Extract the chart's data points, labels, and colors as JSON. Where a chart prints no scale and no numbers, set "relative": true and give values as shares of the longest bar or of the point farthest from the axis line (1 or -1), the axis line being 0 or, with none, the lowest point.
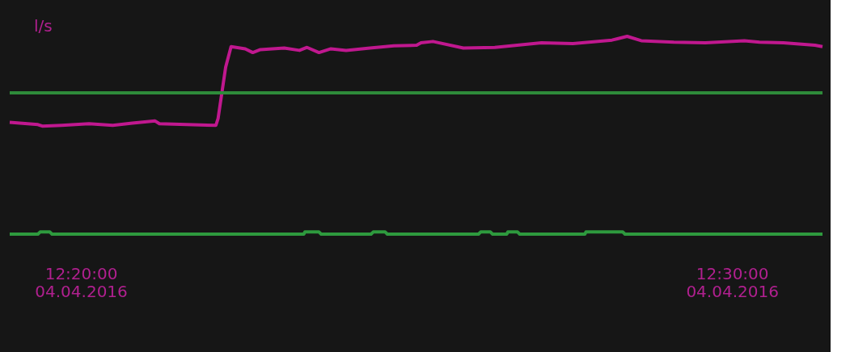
{
  "chart_data": {
    "type": "line",
    "relative": true,
    "ylabel": "l/s",
    "x": [
      "2016-04-04T12:18:54",
      "2016-04-04T12:19:20",
      "2016-04-04T12:19:24",
      "2016-04-04T12:19:42",
      "2016-04-04T12:20:07",
      "2016-04-04T12:20:29",
      "2016-04-04T12:20:47",
      "2016-04-04T12:21:08",
      "2016-04-04T12:21:12",
      "2016-04-04T12:22:04",
      "2016-04-04T12:22:06",
      "2016-04-04T12:22:13",
      "2016-04-04T12:22:18",
      "2016-04-04T12:22:31",
      "2016-04-04T12:22:38",
      "2016-04-04T12:22:45",
      "2016-04-04T12:23:07",
      "2016-04-04T12:23:21",
      "2016-04-04T12:23:28",
      "2016-04-04T12:23:39",
      "2016-04-04T12:23:50",
      "2016-04-04T12:24:04",
      "2016-04-04T12:24:26",
      "2016-04-04T12:24:48",
      "2016-04-04T12:25:09",
      "2016-04-04T12:25:13",
      "2016-04-04T12:25:24",
      "2016-04-04T12:25:52",
      "2016-04-04T12:26:21",
      "2016-04-04T12:27:04",
      "2016-04-04T12:27:33",
      "2016-04-04T12:28:09",
      "2016-04-04T12:28:23",
      "2016-04-04T12:28:36",
      "2016-04-04T12:29:06",
      "2016-04-04T12:29:35",
      "2016-04-04T12:30:11",
      "2016-04-04T12:30:25",
      "2016-04-04T12:30:47",
      "2016-04-04T12:31:16",
      "2016-04-04T12:31:23"
    ],
    "series": [
      {
        "color": "#c0188f",
        "values": [
          0.565,
          0.554,
          0.546,
          0.55,
          0.558,
          0.55,
          0.561,
          0.572,
          0.558,
          0.55,
          0.584,
          0.844,
          0.948,
          0.937,
          0.918,
          0.933,
          0.941,
          0.929,
          0.944,
          0.918,
          0.937,
          0.929,
          0.941,
          0.952,
          0.955,
          0.967,
          0.974,
          0.941,
          0.944,
          0.967,
          0.963,
          0.981,
          1.0,
          0.978,
          0.97,
          0.967,
          0.978,
          0.97,
          0.967,
          0.955,
          0.948
        ]
      },
      {
        "color": "#2e9a3e",
        "x": [
          "2016-04-04T12:18:54",
          "2016-04-04T12:19:20",
          "2016-04-04T12:19:22",
          "2016-04-04T12:19:31",
          "2016-04-04T12:19:33",
          "2016-04-04T12:23:25",
          "2016-04-04T12:23:26",
          "2016-04-04T12:23:39",
          "2016-04-04T12:23:41",
          "2016-04-04T12:24:27",
          "2016-04-04T12:24:29",
          "2016-04-04T12:24:40",
          "2016-04-04T12:24:42",
          "2016-04-04T12:26:06",
          "2016-04-04T12:26:08",
          "2016-04-04T12:26:17",
          "2016-04-04T12:26:19",
          "2016-04-04T12:26:32",
          "2016-04-04T12:26:33",
          "2016-04-04T12:26:42",
          "2016-04-04T12:26:44",
          "2016-04-04T12:27:44",
          "2016-04-04T12:27:45",
          "2016-04-04T12:28:19",
          "2016-04-04T12:28:21",
          "2016-04-04T12:31:23"
        ],
        "values": [
          0,
          0,
          0.011,
          0.011,
          0,
          0,
          0.011,
          0.011,
          0,
          0,
          0.011,
          0.011,
          0,
          0,
          0.011,
          0.011,
          0,
          0,
          0.011,
          0.011,
          0,
          0,
          0.011,
          0.011,
          0,
          0
        ]
      }
    ],
    "ref_lines": [
      {
        "axis": "y",
        "value": 0.714,
        "color": "#2e8b3a"
      }
    ],
    "xlim": [
      "2016-04-04T12:18:54",
      "2016-04-04T12:31:23"
    ],
    "xticks": [
      {
        "value": "2016-04-04T12:20:00",
        "label": "12:20:00\n04.04.2016"
      },
      {
        "value": "2016-04-04T12:30:00",
        "label": "12:30:00\n04.04.2016"
      }
    ],
    "grid": false,
    "legend": false,
    "marker": "none",
    "line_style": "solid"
  }
}
